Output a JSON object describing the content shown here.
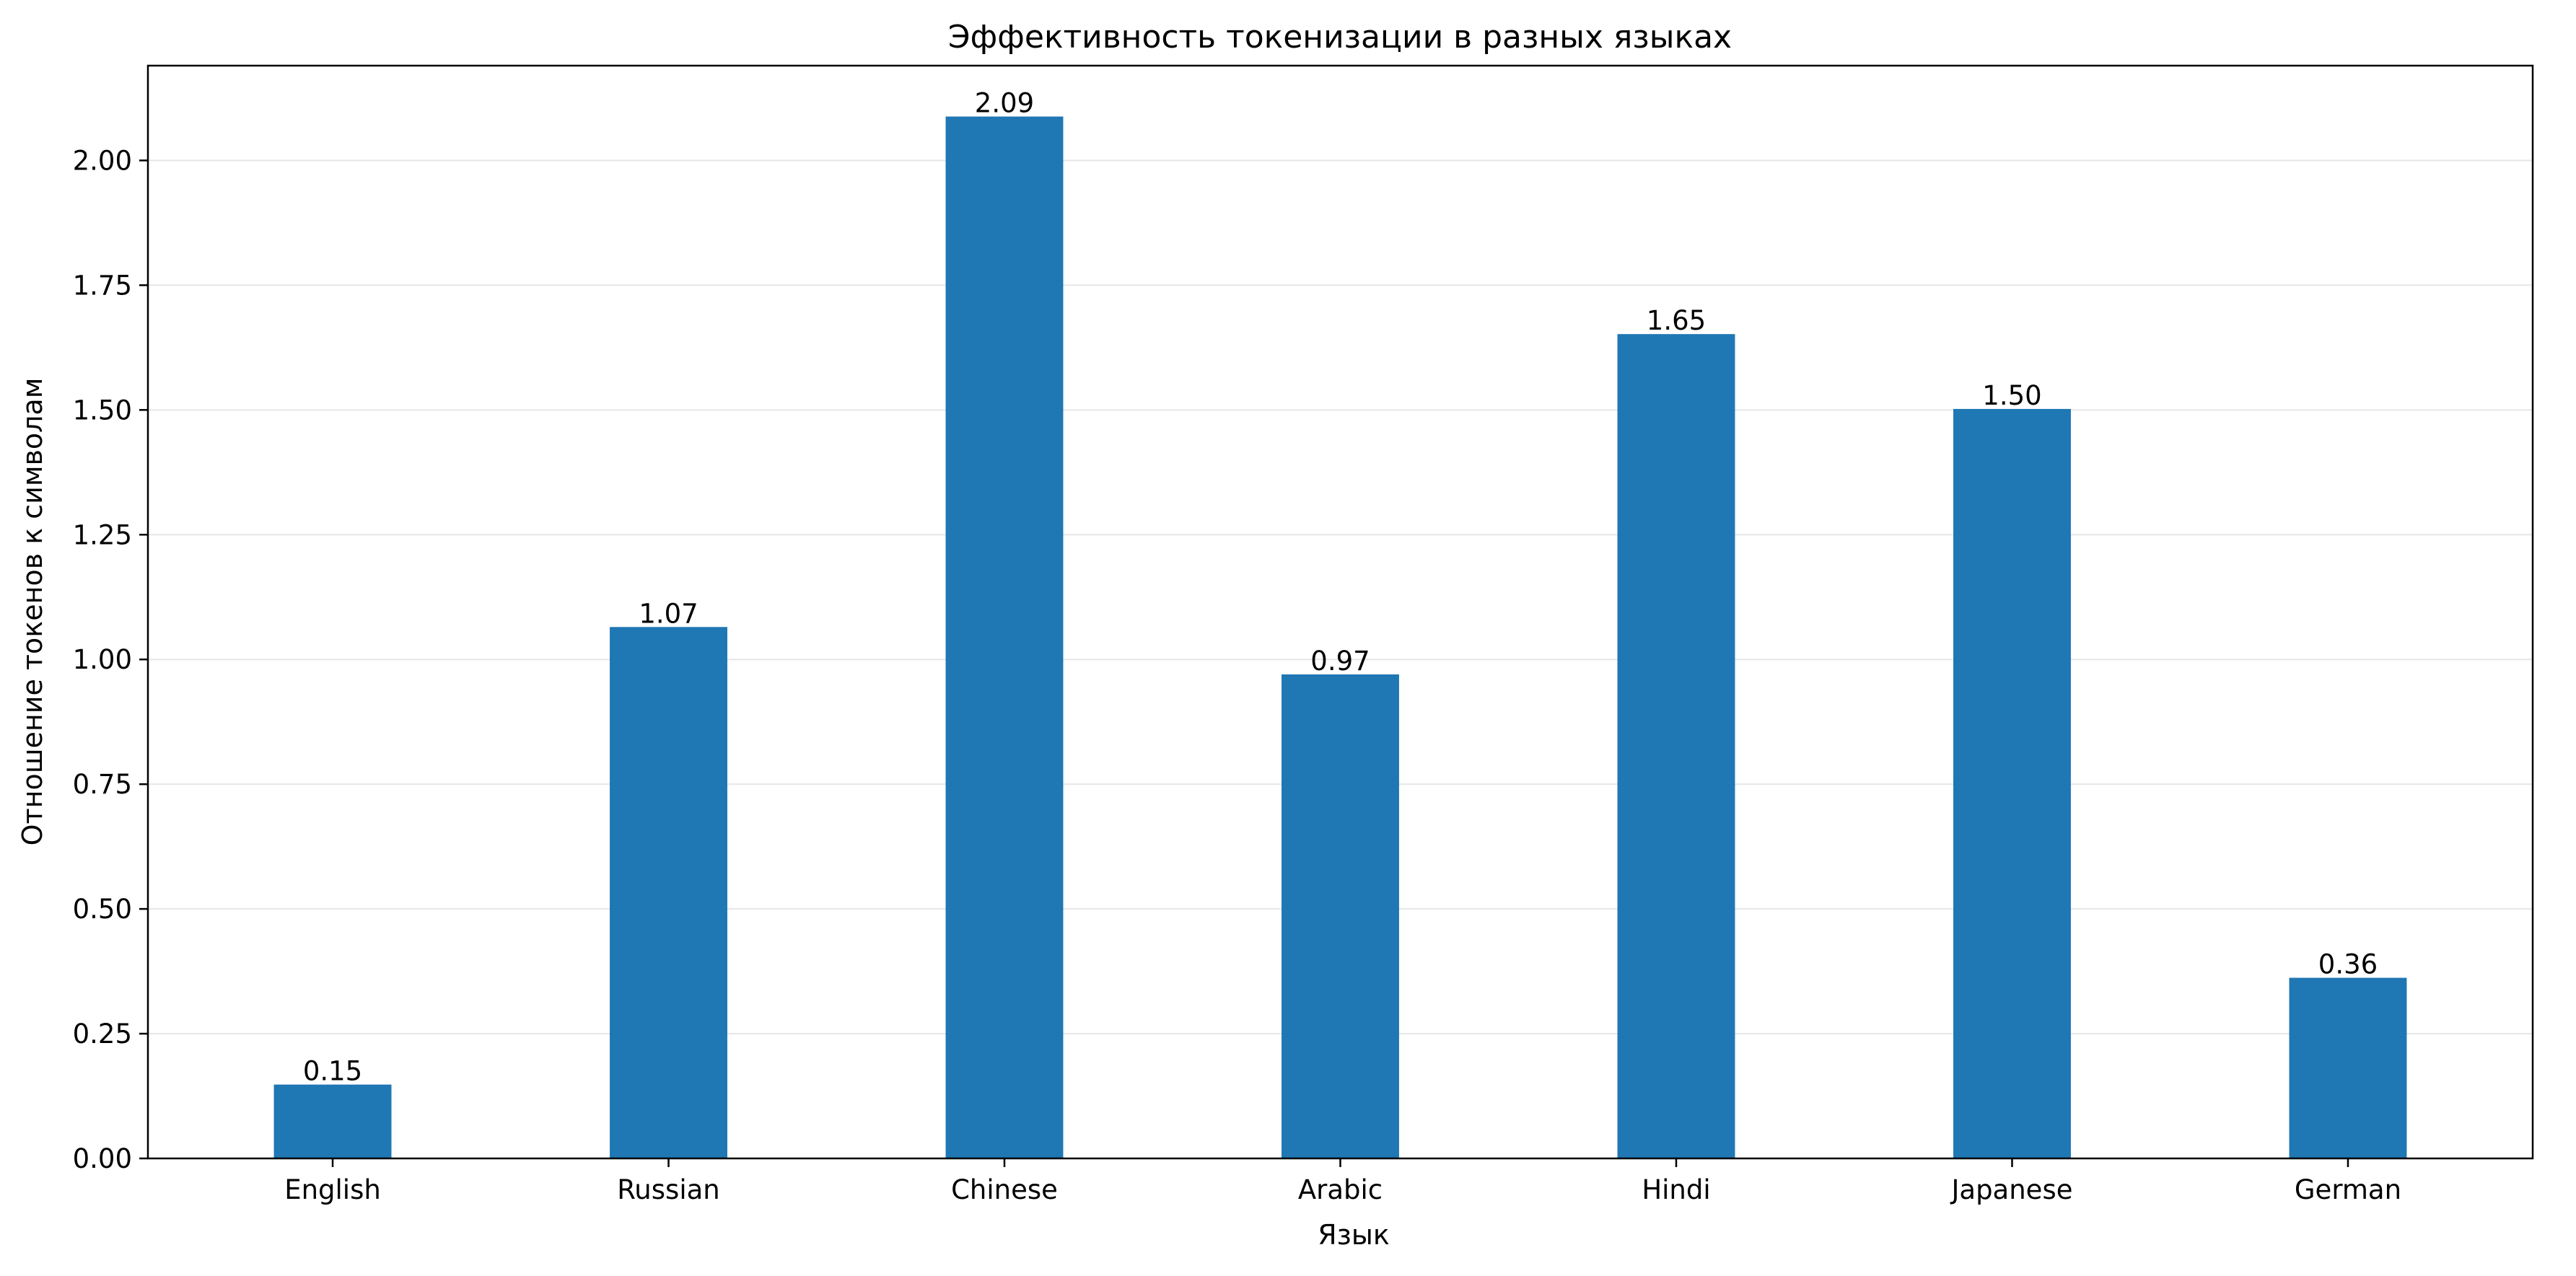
{
  "chart_data": {
    "type": "bar",
    "title": "Эффективность токенизации в разных языках",
    "xlabel": "Язык",
    "ylabel": "Отношение токенов к символам",
    "categories": [
      "English",
      "Russian",
      "Chinese",
      "Arabic",
      "Hindi",
      "Japanese",
      "German"
    ],
    "values": [
      0.148,
      1.065,
      2.088,
      0.97,
      1.652,
      1.502,
      0.362
    ],
    "data_labels": [
      "0.15",
      "1.07",
      "2.09",
      "0.97",
      "1.65",
      "1.50",
      "0.36"
    ],
    "ylim": [
      0,
      2.19
    ],
    "yticks": [
      0,
      0.25,
      0.5,
      0.75,
      1.0,
      1.25,
      1.5,
      1.75,
      2.0
    ],
    "ytick_labels": [
      "0.00",
      "0.25",
      "0.50",
      "0.75",
      "1.00",
      "1.25",
      "1.50",
      "1.75",
      "2.00"
    ],
    "grid": "horizontal",
    "bar_color": "#1f77b4",
    "grid_color": "#e6e6e6"
  }
}
